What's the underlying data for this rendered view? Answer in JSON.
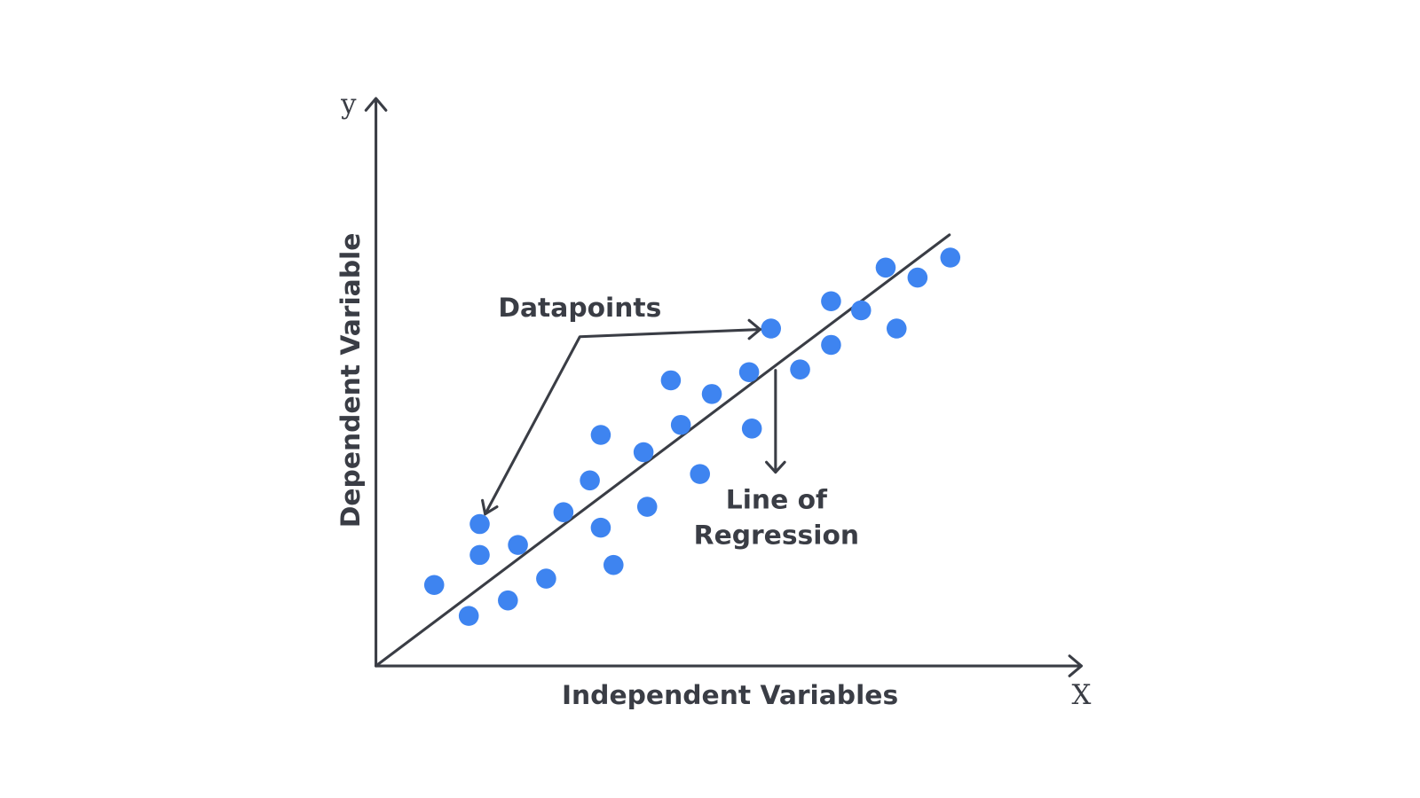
{
  "axes": {
    "y_symbol": "y",
    "x_symbol": "X",
    "y_label": "Dependent Variable",
    "x_label": "Independent Variables"
  },
  "annotations": {
    "datapoints": "Datapoints",
    "regression_line": [
      "Line of",
      "Regression"
    ]
  }
}
